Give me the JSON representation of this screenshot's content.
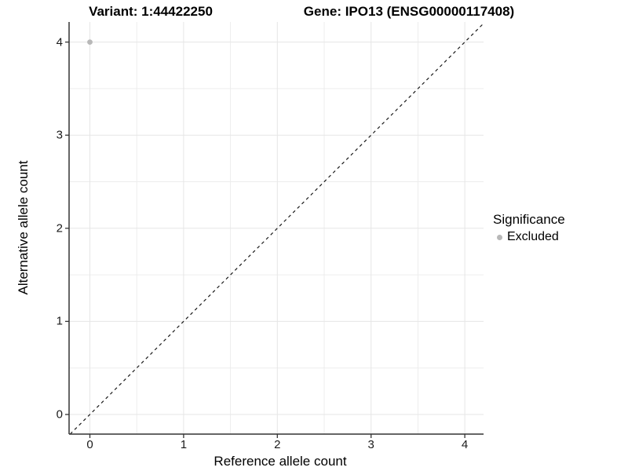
{
  "figure": {
    "title_left": "Variant: 1:44422250",
    "title_right": "Gene: IPO13 (ENSG00000117408)"
  },
  "chart_data": {
    "type": "scatter",
    "title_left": "Variant: 1:44422250",
    "title_right": "Gene: IPO13 (ENSG00000117408)",
    "xlabel": "Reference allele count",
    "ylabel": "Alternative allele count",
    "xlim": [
      -0.22,
      4.2
    ],
    "ylim": [
      -0.21,
      4.21
    ],
    "x_ticks": [
      0,
      1,
      2,
      3,
      4
    ],
    "y_ticks": [
      0,
      1,
      2,
      3,
      4
    ],
    "minor_grid_positions": [
      0.5,
      1.5,
      2.5,
      3.5
    ],
    "grid": true,
    "series": [
      {
        "name": "Excluded",
        "color": "#b8b8b8",
        "points": [
          {
            "x": 0,
            "y": 4
          }
        ]
      }
    ],
    "reference_line": {
      "equation": "y = x",
      "style": "dashed",
      "color": "#1a1a1a"
    },
    "legend": {
      "title": "Significance",
      "position": "right",
      "items": [
        {
          "label": "Excluded",
          "color": "#b8b8b8"
        }
      ]
    }
  },
  "colors": {
    "background": "#ffffff",
    "grid_major": "#e6e6e6",
    "grid_minor": "#ededed",
    "axis_line": "#333333",
    "text": "#000000",
    "point": "#b8b8b8"
  }
}
